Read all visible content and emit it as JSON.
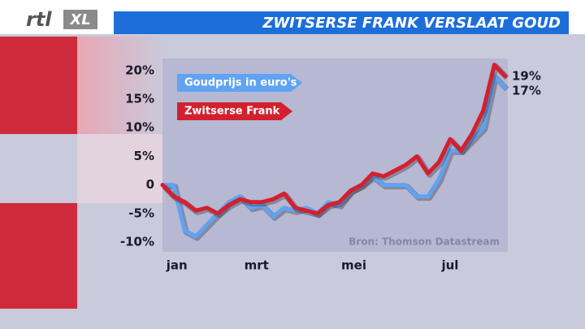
{
  "brand": "rtl",
  "brand_tag": "XL",
  "chart_data": {
    "type": "line",
    "title": "ZWITSERSE FRANK VERSLAAT GOUD",
    "source": "Bron: Thomson Datastream",
    "x": [
      0,
      1,
      2,
      3,
      4,
      5,
      6,
      7,
      8,
      9,
      10,
      11,
      12,
      13,
      14,
      15,
      16,
      17,
      18,
      19,
      20,
      21,
      22,
      23,
      24,
      25,
      26,
      27,
      28,
      29,
      30,
      31
    ],
    "xlim": [
      0,
      31
    ],
    "xticks": [
      {
        "value": 1.3,
        "label": "jan"
      },
      {
        "value": 8.5,
        "label": "mrt"
      },
      {
        "value": 17.3,
        "label": "mei"
      },
      {
        "value": 26,
        "label": "jul"
      }
    ],
    "ylim": [
      -11.7,
      22.1
    ],
    "yticks": [
      {
        "value": -10,
        "label": "-10%"
      },
      {
        "value": -5,
        "label": "-5%"
      },
      0,
      {
        "value": 5,
        "label": "5%"
      },
      {
        "value": 10,
        "label": "10%"
      },
      {
        "value": 15,
        "label": "15%"
      },
      {
        "value": 20,
        "label": "20%"
      }
    ],
    "series": [
      {
        "name": "Goudprijs in euro's",
        "color": "#5fa3f2",
        "values": [
          0,
          0,
          -8,
          -9,
          -7,
          -5,
          -3,
          -2,
          -4,
          -3.5,
          -5.5,
          -4,
          -4.5,
          -4,
          -5,
          -3,
          -3.5,
          -1,
          0,
          1.5,
          0,
          0,
          0,
          -2,
          -2,
          1,
          6,
          6,
          8,
          10,
          19,
          17
        ],
        "value_labels": [
          null,
          null,
          null,
          null,
          null,
          null,
          null,
          null,
          null,
          null,
          null,
          null,
          null,
          null,
          null,
          null,
          null,
          null,
          null,
          null,
          null,
          null,
          null,
          null,
          null,
          null,
          null,
          null,
          null,
          null,
          null,
          "17%"
        ]
      },
      {
        "name": "Zwitserse Frank",
        "color": "#d3202f",
        "values": [
          0,
          -2,
          -3,
          -4.5,
          -4,
          -5,
          -3.5,
          -2.5,
          -3,
          -3,
          -2.5,
          -1.5,
          -4,
          -4.5,
          -5,
          -3.5,
          -3,
          -1,
          0,
          2,
          1.5,
          2.5,
          3.5,
          5,
          2,
          4,
          8,
          6,
          9,
          13,
          21,
          19
        ],
        "value_labels": [
          null,
          null,
          null,
          null,
          null,
          null,
          null,
          null,
          null,
          null,
          null,
          null,
          null,
          null,
          null,
          null,
          null,
          null,
          null,
          null,
          null,
          null,
          null,
          null,
          null,
          null,
          null,
          null,
          null,
          null,
          null,
          "19%"
        ]
      }
    ]
  }
}
